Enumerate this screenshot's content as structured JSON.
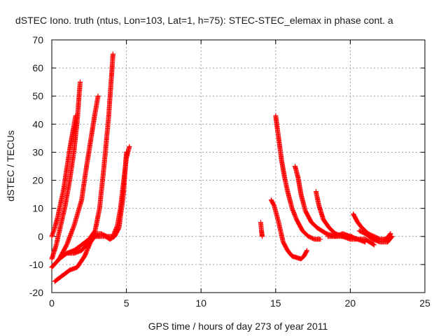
{
  "chart_data": {
    "type": "scatter",
    "title": "dSTEC Iono. truth (ntus, Lon=103, Lat=1, h=75): STEC-STEC_elemax in phase cont. a",
    "xlabel": "GPS time / hours of day 273 of year 2011",
    "ylabel": "dSTEC  / TECUs",
    "xlim": [
      0,
      25
    ],
    "ylim": [
      -20,
      70
    ],
    "xticks": [
      0,
      5,
      10,
      15,
      20,
      25
    ],
    "yticks": [
      -20,
      -10,
      0,
      10,
      20,
      30,
      40,
      50,
      60,
      70
    ],
    "grid": true,
    "legend": "none",
    "marker": "plus",
    "color": "#ff0000",
    "series": [
      {
        "x": [
          0.0,
          0.2,
          0.4,
          0.6,
          0.8,
          1.0,
          1.2,
          1.4,
          1.6
        ],
        "y": [
          0,
          3,
          7,
          12,
          17,
          24,
          31,
          37,
          43
        ]
      },
      {
        "x": [
          0.0,
          0.3,
          0.6,
          0.9,
          1.2,
          1.5,
          1.7,
          1.9
        ],
        "y": [
          -8,
          -3,
          4,
          11,
          20,
          31,
          41,
          55
        ]
      },
      {
        "x": [
          0.0,
          0.5,
          1.0,
          1.5,
          2.0,
          2.3,
          2.6,
          2.9,
          3.1
        ],
        "y": [
          -11,
          -8,
          -3,
          4,
          13,
          24,
          34,
          44,
          50
        ]
      },
      {
        "x": [
          0.0,
          0.5,
          1.0,
          1.5,
          2.0,
          2.5,
          2.9,
          3.2,
          3.5,
          3.8,
          4.0,
          4.1
        ],
        "y": [
          -11,
          -8,
          -6,
          -5,
          -3,
          -1,
          2,
          10,
          25,
          42,
          57,
          65
        ]
      },
      {
        "x": [
          0.2,
          0.7,
          1.2,
          1.7,
          2.2,
          2.6,
          3.0,
          3.3,
          3.7,
          4.1,
          4.4,
          4.6,
          4.8,
          5.0,
          5.2
        ],
        "y": [
          -16,
          -14,
          -12,
          -11,
          -7,
          -2,
          1,
          1,
          0,
          0,
          4,
          10,
          19,
          28,
          32
        ]
      },
      {
        "x": [
          1.0,
          1.5,
          2.0,
          2.5,
          2.9,
          3.3,
          3.6,
          3.9,
          4.2,
          4.5,
          4.8,
          5.0
        ],
        "y": [
          -6,
          -6,
          -5,
          -2,
          0,
          0,
          0,
          -1,
          0,
          3,
          15,
          30
        ]
      },
      {
        "x": [
          14.0,
          14.05,
          14.1
        ],
        "y": [
          5,
          2,
          0
        ]
      },
      {
        "x": [
          14.7,
          14.9,
          15.2,
          15.5,
          15.8,
          16.1,
          16.4,
          16.7,
          16.9,
          17.1
        ],
        "y": [
          13,
          11,
          5,
          -2,
          -5,
          -7,
          -7.5,
          -8,
          -7,
          -5
        ]
      },
      {
        "x": [
          15.0,
          15.2,
          15.4,
          15.6,
          15.8,
          16.1,
          16.4,
          16.8,
          17.2,
          17.6,
          18.0
        ],
        "y": [
          43,
          35,
          27,
          21,
          16,
          10,
          6,
          2,
          0,
          -1,
          -1
        ]
      },
      {
        "x": [
          16.3,
          16.5,
          16.7,
          17.0,
          17.4,
          17.8,
          18.4,
          19.0,
          19.6,
          20.1
        ],
        "y": [
          25,
          21,
          15,
          9,
          5,
          3,
          1,
          0,
          0,
          0
        ]
      },
      {
        "x": [
          17.7,
          17.9,
          18.2,
          18.6,
          19.0,
          19.5,
          20.0,
          20.5,
          21.0
        ],
        "y": [
          16,
          11,
          6,
          3,
          1,
          0,
          -1,
          -1,
          -2
        ]
      },
      {
        "x": [
          18.5,
          19.0,
          19.5,
          20.0,
          20.5,
          21.0,
          21.6
        ],
        "y": [
          0,
          0,
          1,
          0,
          -1,
          -1,
          -3
        ]
      },
      {
        "x": [
          20.2,
          20.5,
          20.8,
          21.2,
          21.6,
          22.0,
          22.4,
          22.7
        ],
        "y": [
          8,
          5,
          3,
          1,
          0,
          -1,
          -1,
          1
        ]
      },
      {
        "x": [
          20.6,
          21.0,
          21.5,
          22.0,
          22.5,
          22.8
        ],
        "y": [
          2,
          1,
          -1,
          -2,
          -2,
          0
        ]
      }
    ]
  }
}
